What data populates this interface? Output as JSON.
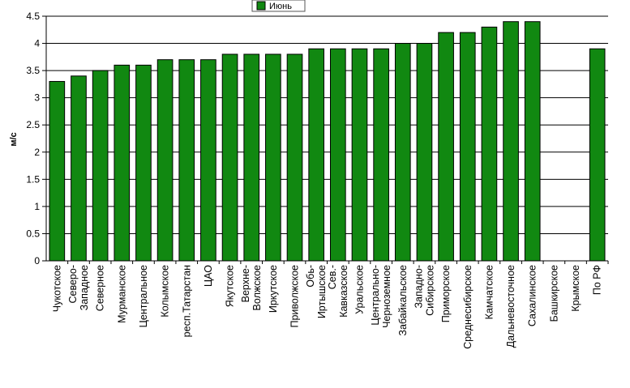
{
  "colors": {
    "bar_fill": "#118811",
    "bar_stroke": "#000000",
    "grid": "#000000",
    "background": "#ffffff"
  },
  "chart_data": {
    "type": "bar",
    "title": "",
    "xlabel": "",
    "ylabel": "м/с",
    "ylim": [
      0,
      4.5
    ],
    "yticks": [
      "0",
      "0.5",
      "1",
      "1.5",
      "2",
      "2.5",
      "3",
      "3.5",
      "4",
      "4.5"
    ],
    "grid": "horizontal",
    "legend_position": "top-center",
    "categories": [
      [
        "Чукотское"
      ],
      [
        "Северо-",
        "Западное"
      ],
      [
        "Северное"
      ],
      [
        "Мурманское"
      ],
      [
        "Центральное"
      ],
      [
        "Колымское"
      ],
      [
        "респ.Татарстан"
      ],
      [
        "ЦАО"
      ],
      [
        "Якутское"
      ],
      [
        "Верхне-",
        "Волжское"
      ],
      [
        "Иркутское"
      ],
      [
        "Приволжское"
      ],
      [
        "Обь-",
        "Иртышское"
      ],
      [
        "Сев.-",
        "Кавказское"
      ],
      [
        "Уральское"
      ],
      [
        "Центрально-",
        "Черноземное"
      ],
      [
        "Забайкальское"
      ],
      [
        "Западно-",
        "Сибирское"
      ],
      [
        "Приморское"
      ],
      [
        "Среднесибирское"
      ],
      [
        "Камчатское"
      ],
      [
        "Дальневосточное"
      ],
      [
        "Сахалинское"
      ],
      [
        "Башкирское"
      ],
      [
        "Крымское"
      ],
      [
        "По РФ"
      ]
    ],
    "series": [
      {
        "name": "Июнь",
        "values": [
          3.3,
          3.4,
          3.5,
          3.6,
          3.6,
          3.7,
          3.7,
          3.7,
          3.8,
          3.8,
          3.8,
          3.8,
          3.9,
          3.9,
          3.9,
          3.9,
          4.0,
          4.0,
          4.2,
          4.2,
          4.3,
          4.4,
          4.4,
          null,
          null,
          3.9
        ]
      }
    ]
  }
}
